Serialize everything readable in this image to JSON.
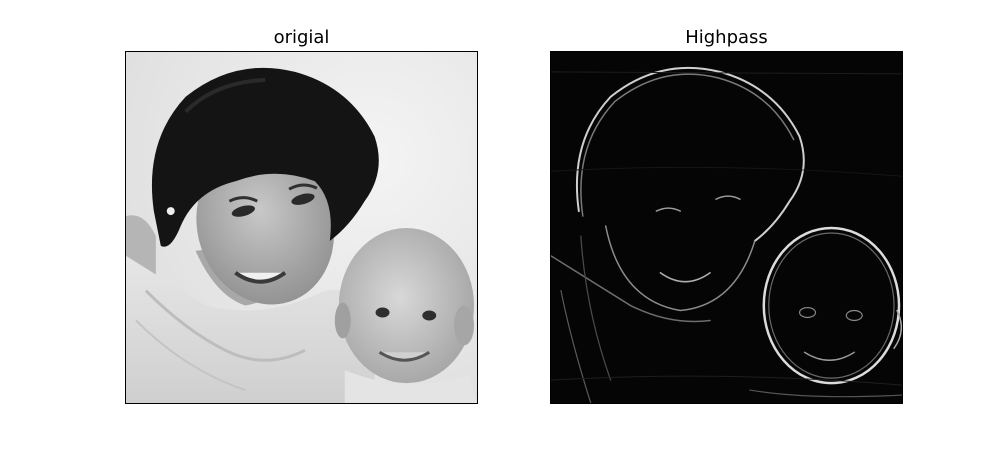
{
  "figure": {
    "panels": [
      {
        "title": "origial"
      },
      {
        "title": "Highpass"
      }
    ]
  }
}
